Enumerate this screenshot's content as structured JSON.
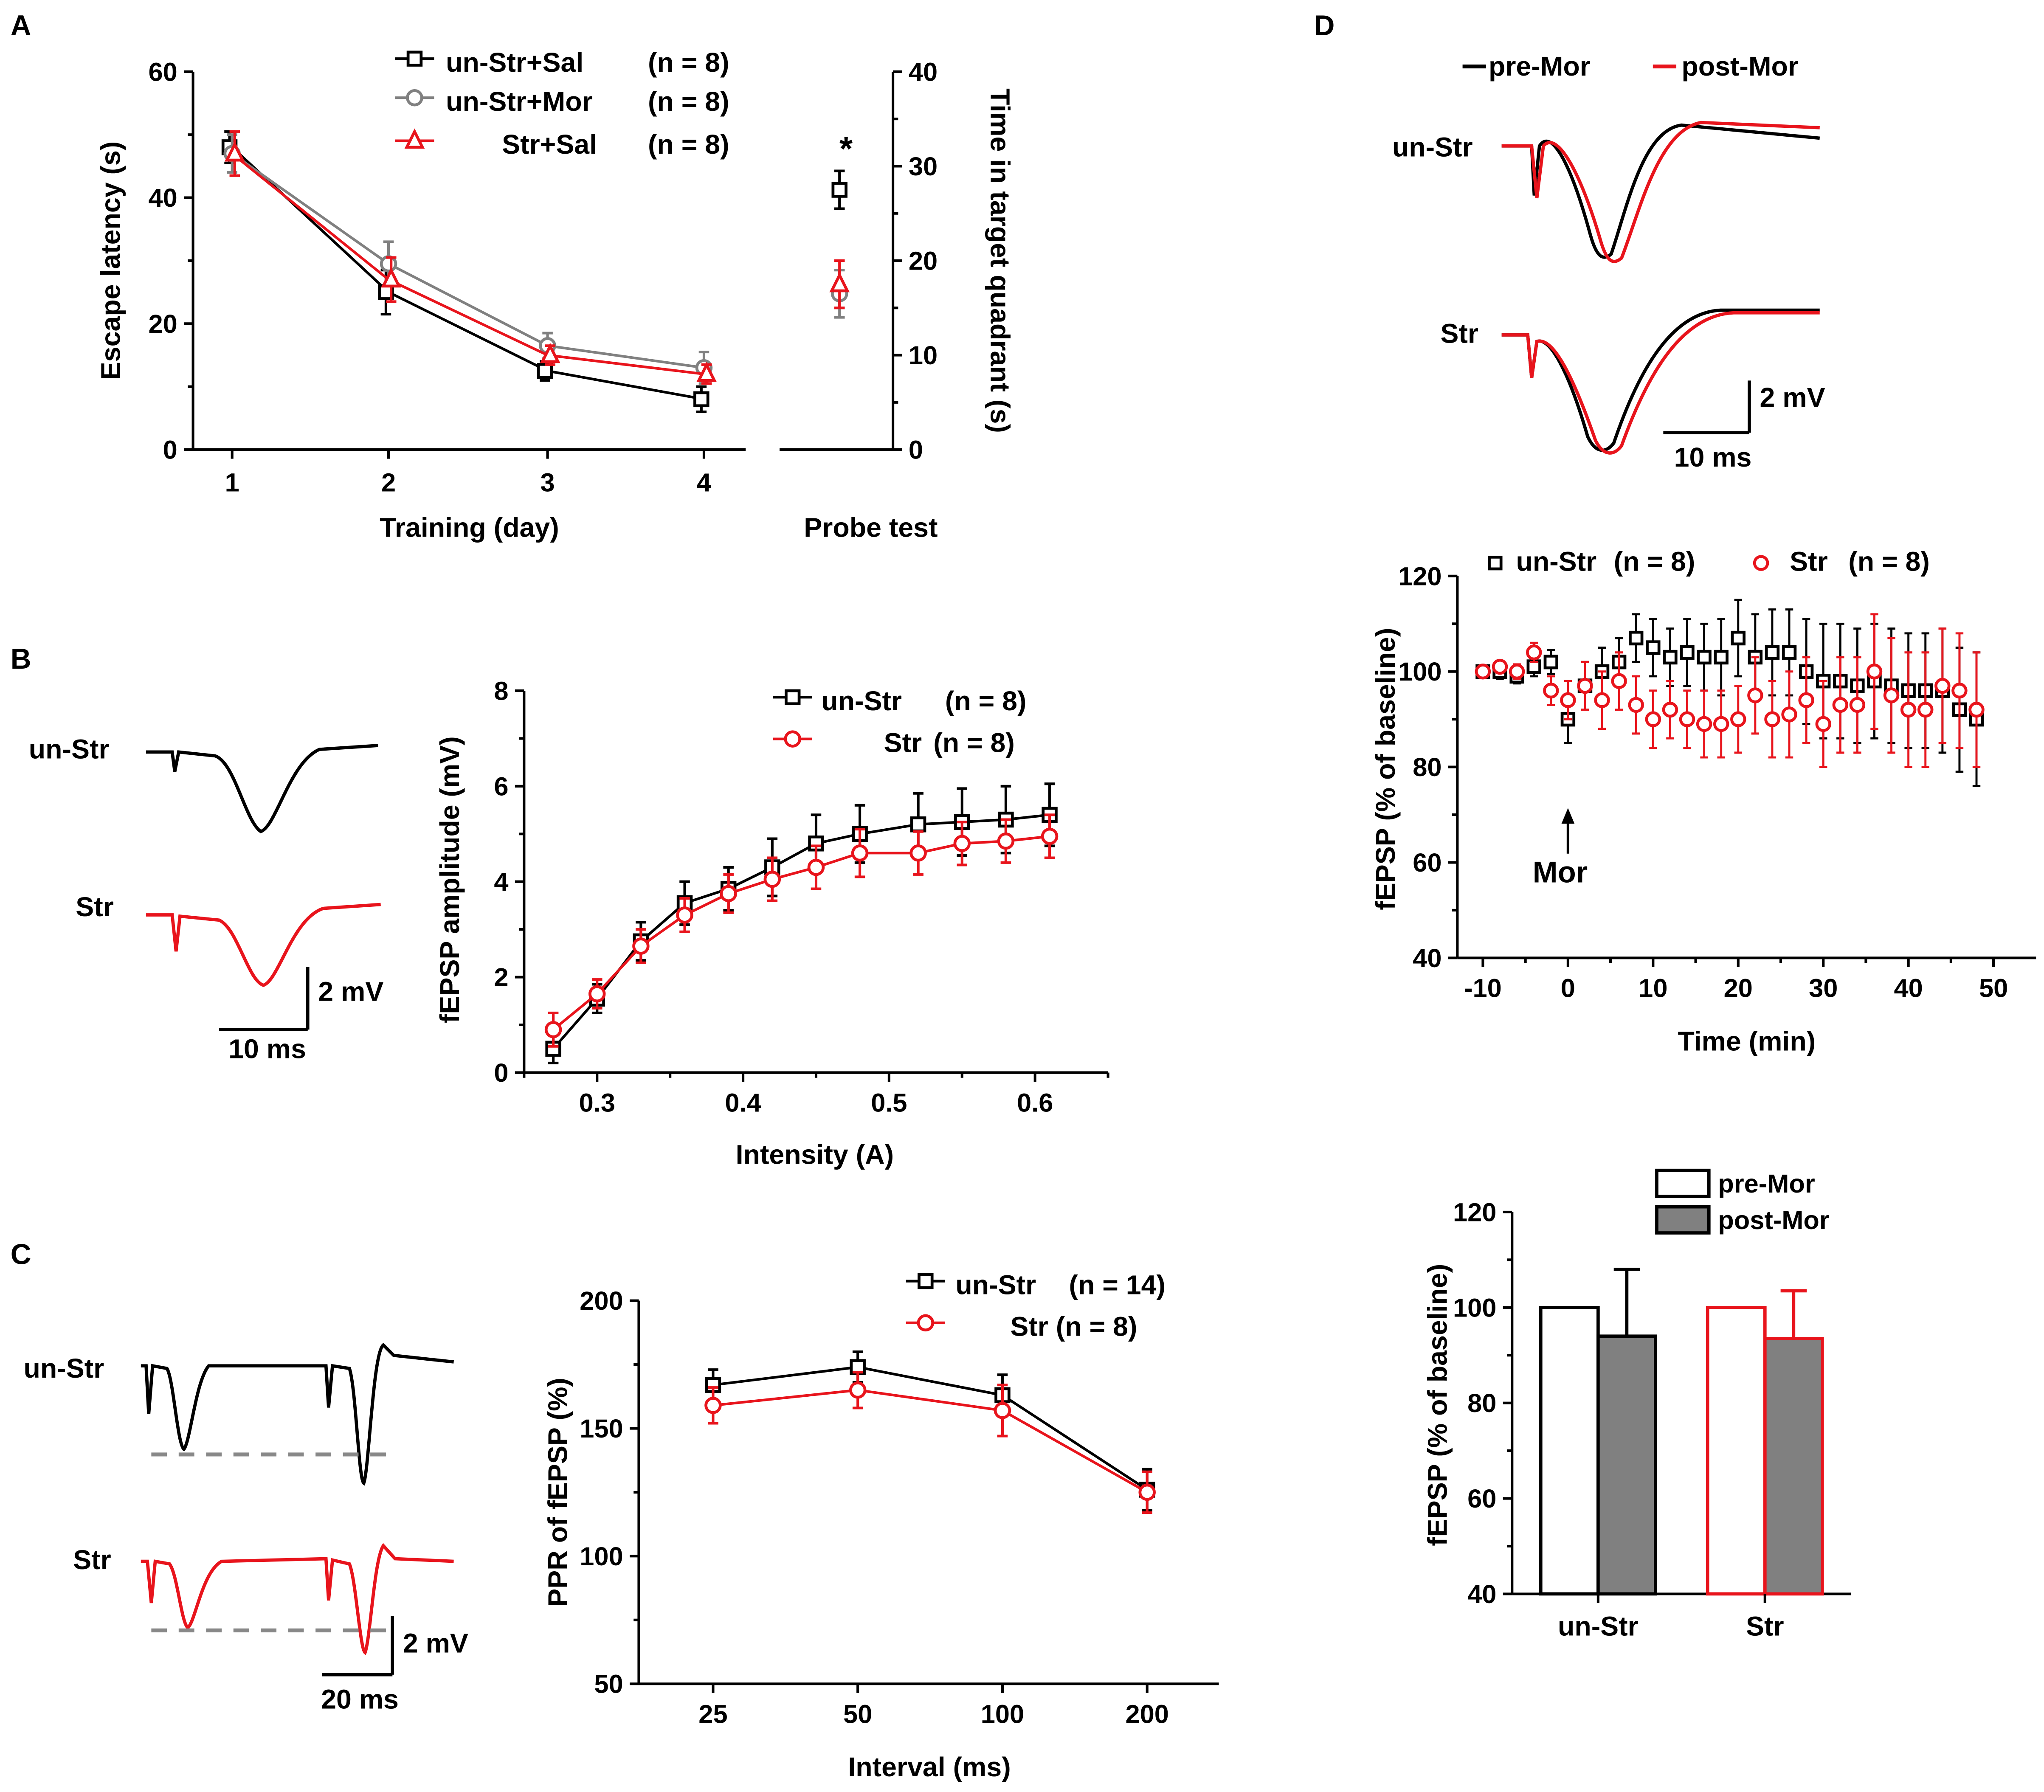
{
  "colors": {
    "black": "#000000",
    "gray": "#808080",
    "red": "#e8141c",
    "fill_gray": "#808080"
  },
  "panels": {
    "A": "A",
    "B": "B",
    "C": "C",
    "D": "D"
  },
  "chart_data": [
    {
      "id": "A",
      "type": "line",
      "ylabel": "Escape latency (s)",
      "xlabel": "Training (day)",
      "ylim": [
        0,
        60
      ],
      "categories": [
        "1",
        "2",
        "3",
        "4"
      ],
      "series": [
        {
          "name": "un-Str+Sal",
          "n": "(n = 8)",
          "color": "black",
          "marker": "square",
          "values": [
            48,
            25,
            12.5,
            8
          ],
          "errors": [
            2.5,
            3.5,
            1.5,
            2
          ]
        },
        {
          "name": "un-Str+Mor",
          "n": "(n = 8)",
          "color": "gray",
          "marker": "circle",
          "values": [
            47,
            29.5,
            16.5,
            13
          ],
          "errors": [
            3,
            3.5,
            2,
            2.5
          ]
        },
        {
          "name": "Str+Sal",
          "n": "(n = 8)",
          "color": "red",
          "marker": "triangle",
          "values": [
            47,
            27,
            15,
            12
          ],
          "errors": [
            3.5,
            3.5,
            1.5,
            1.5
          ]
        }
      ],
      "probe": {
        "xlabel": "Probe test",
        "ylabel": "Time in target quadrant (s)",
        "ylim": [
          0,
          40
        ],
        "values": [
          27.5,
          16.5,
          17.5
        ],
        "errors": [
          2,
          2.5,
          2.5
        ],
        "annotation": "*"
      }
    },
    {
      "id": "B",
      "type": "line",
      "ylabel": "fEPSP amplitude (mV)",
      "xlabel": "Intensity (A)",
      "ylim": [
        0,
        8
      ],
      "xlim": [
        0.25,
        0.65
      ],
      "x": [
        0.27,
        0.3,
        0.33,
        0.36,
        0.39,
        0.42,
        0.45,
        0.48,
        0.52,
        0.55,
        0.58,
        0.61
      ],
      "series": [
        {
          "name": "un-Str",
          "n": "(n = 8)",
          "color": "black",
          "marker": "square",
          "values": [
            0.5,
            1.55,
            2.75,
            3.55,
            3.85,
            4.3,
            4.8,
            5.0,
            5.2,
            5.25,
            5.3,
            5.4
          ],
          "errors": [
            0.3,
            0.3,
            0.4,
            0.45,
            0.45,
            0.6,
            0.6,
            0.6,
            0.65,
            0.7,
            0.7,
            0.65
          ]
        },
        {
          "name": "Str",
          "n": "(n = 8)",
          "color": "red",
          "marker": "circle",
          "values": [
            0.9,
            1.65,
            2.65,
            3.3,
            3.75,
            4.05,
            4.3,
            4.6,
            4.6,
            4.8,
            4.85,
            4.95
          ],
          "errors": [
            0.35,
            0.3,
            0.35,
            0.35,
            0.4,
            0.45,
            0.45,
            0.5,
            0.45,
            0.45,
            0.45,
            0.45
          ]
        }
      ],
      "traces": {
        "labels": [
          "un-Str",
          "Str"
        ],
        "scale_v": "2 mV",
        "scale_t": "10 ms"
      }
    },
    {
      "id": "C",
      "type": "line",
      "ylabel": "PPR of fEPSP (%)",
      "xlabel": "Interval (ms)",
      "ylim": [
        50,
        200
      ],
      "categories": [
        "25",
        "50",
        "100",
        "200"
      ],
      "series": [
        {
          "name": "un-Str",
          "n": "(n = 14)",
          "color": "black",
          "marker": "square",
          "values": [
            167,
            174,
            163,
            126
          ],
          "errors": [
            6,
            6,
            8,
            8
          ]
        },
        {
          "name": "Str",
          "n": "(n = 8)",
          "color": "red",
          "marker": "circle",
          "values": [
            159,
            165,
            157,
            125
          ],
          "errors": [
            7,
            7,
            10,
            8
          ]
        }
      ],
      "traces": {
        "labels": [
          "un-Str",
          "Str"
        ],
        "scale_v": "2 mV",
        "scale_t": "20 ms"
      }
    },
    {
      "id": "D1",
      "type": "scatter",
      "ylabel": "fEPSP (% of baseline)",
      "xlabel": "Time (min)",
      "ylim": [
        40,
        120
      ],
      "xlim": [
        -13,
        55
      ],
      "arrow_label": "Mor",
      "arrow_x": 0,
      "series": [
        {
          "name": "un-Str",
          "n": "(n = 8)",
          "color": "black",
          "marker": "square",
          "x": [
            -10,
            -8,
            -6,
            -4,
            -2,
            0,
            2,
            4,
            6,
            8,
            10,
            12,
            14,
            16,
            18,
            20,
            22,
            24,
            26,
            28,
            30,
            32,
            34,
            36,
            38,
            40,
            42,
            44,
            46,
            48
          ],
          "values": [
            100,
            100,
            99,
            101,
            102,
            90,
            97,
            100,
            102,
            107,
            105,
            103,
            104,
            103,
            103,
            107,
            103,
            104,
            104,
            100,
            98,
            98,
            97,
            98,
            97,
            96,
            96,
            96,
            92,
            90
          ],
          "errors": [
            1,
            1.5,
            1.5,
            2,
            2.5,
            5,
            5,
            5,
            5,
            5,
            6,
            6,
            7,
            7,
            8,
            8,
            9,
            9,
            9,
            11,
            12,
            12,
            12,
            12,
            12,
            12,
            12,
            13,
            13,
            14
          ]
        },
        {
          "name": "Str",
          "n": "(n = 8)",
          "color": "red",
          "marker": "circle",
          "x": [
            -10,
            -8,
            -6,
            -4,
            -2,
            0,
            2,
            4,
            6,
            8,
            10,
            12,
            14,
            16,
            18,
            20,
            22,
            24,
            26,
            28,
            30,
            32,
            34,
            36,
            38,
            40,
            42,
            44,
            46,
            48
          ],
          "values": [
            100,
            101,
            100,
            104,
            96,
            94,
            97,
            94,
            98,
            93,
            90,
            92,
            90,
            89,
            89,
            90,
            95,
            90,
            91,
            94,
            89,
            93,
            93,
            100,
            95,
            92,
            92,
            97,
            96,
            92
          ],
          "errors": [
            1,
            1,
            1.5,
            2,
            3,
            4,
            5,
            6,
            6,
            6,
            6,
            6,
            6,
            7,
            7,
            7,
            8,
            8,
            9,
            9,
            9,
            10,
            10,
            12,
            12,
            12,
            12,
            12,
            12,
            12
          ]
        }
      ],
      "traces": {
        "legend": [
          "pre-Mor",
          "post-Mor"
        ],
        "labels": [
          "un-Str",
          "Str"
        ],
        "scale_v": "2 mV",
        "scale_t": "10 ms"
      }
    },
    {
      "id": "D2",
      "type": "bar",
      "ylabel": "fEPSP (% of baseline)",
      "ylim": [
        40,
        120
      ],
      "categories": [
        "un-Str",
        "Str"
      ],
      "series": [
        {
          "name": "pre-Mor",
          "values": [
            100,
            100
          ],
          "errors": [
            0,
            0
          ]
        },
        {
          "name": "post-Mor",
          "values": [
            94,
            93.5
          ],
          "errors": [
            14,
            10
          ]
        }
      ]
    }
  ]
}
